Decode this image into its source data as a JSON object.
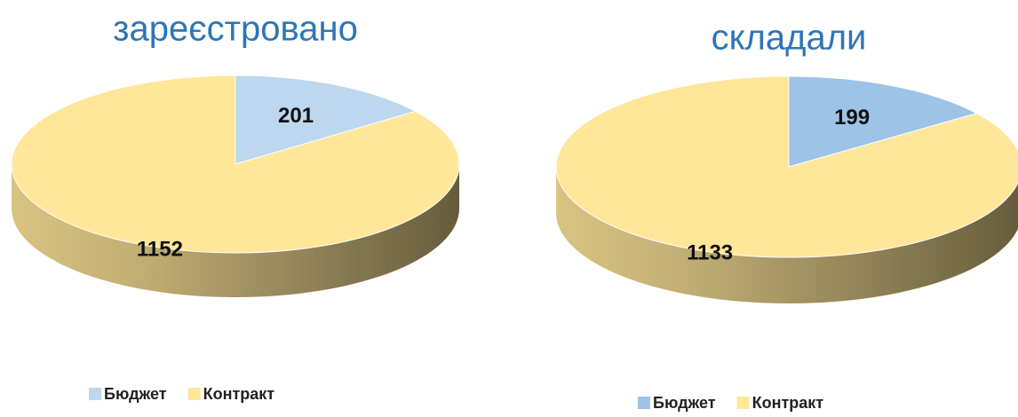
{
  "chart_data": [
    {
      "type": "pie",
      "title": "зареєстровано",
      "categories": [
        "Бюджет",
        "Контракт"
      ],
      "values": [
        201,
        1152
      ],
      "colors": [
        "#bdd7ee",
        "#ffe699"
      ],
      "legend": "bottom"
    },
    {
      "type": "pie",
      "title": "складали",
      "categories": [
        "Бюджет",
        "Контракт"
      ],
      "values": [
        199,
        1133
      ],
      "colors": [
        "#9dc3e6",
        "#ffe699"
      ],
      "legend": "bottom"
    }
  ]
}
